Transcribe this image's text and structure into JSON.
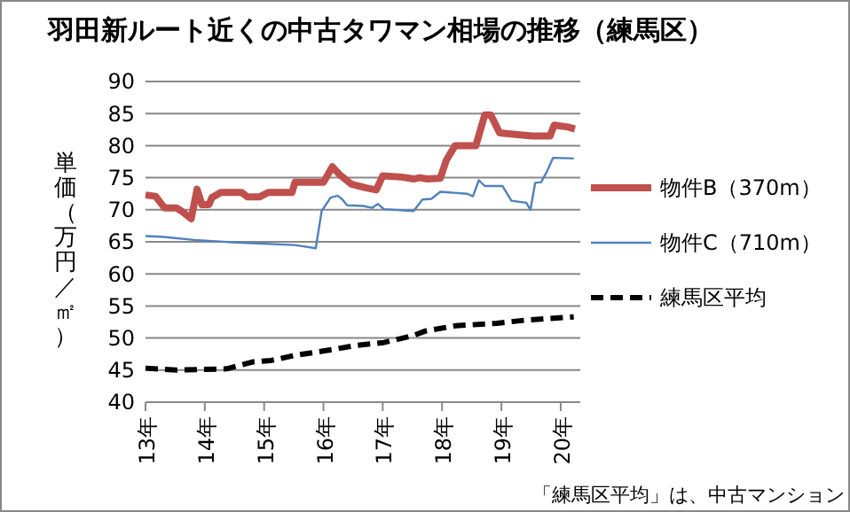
{
  "chart_data": {
    "type": "line",
    "title": "羽田新ルート近くの中古タワマン相場の推移（練馬区）",
    "ylabel": "単価（万円／㎡）",
    "xlim": [
      13,
      20.33
    ],
    "xticks": [
      {
        "value": 13,
        "label": "13年"
      },
      {
        "value": 14,
        "label": "14年"
      },
      {
        "value": 15,
        "label": "15年"
      },
      {
        "value": 16,
        "label": "16年"
      },
      {
        "value": 17,
        "label": "17年"
      },
      {
        "value": 18,
        "label": "18年"
      },
      {
        "value": 19,
        "label": "19年"
      },
      {
        "value": 20,
        "label": "20年"
      }
    ],
    "ylim": [
      40,
      90
    ],
    "yticks": [
      40,
      45,
      50,
      55,
      60,
      65,
      70,
      75,
      80,
      85,
      90
    ],
    "grid": "y",
    "legend": "right",
    "annotations": [
      "「練馬区平均」は、中古マンション"
    ],
    "series": [
      {
        "name": "物件B（370m）",
        "color": "#c0504d",
        "line_style": "solid",
        "x": [
          13.0,
          13.17,
          13.32,
          13.52,
          13.62,
          13.77,
          13.87,
          13.95,
          14.07,
          14.12,
          14.27,
          14.62,
          14.72,
          14.92,
          15.07,
          15.47,
          15.52,
          16.0,
          16.15,
          16.27,
          16.47,
          16.72,
          16.89,
          17.0,
          17.32,
          17.52,
          17.62,
          17.75,
          17.97,
          18.07,
          18.22,
          18.57,
          18.72,
          18.82,
          18.97,
          19.27,
          19.52,
          19.82,
          19.89,
          20.12,
          20.24
        ],
        "values": [
          72.3,
          72.1,
          70.3,
          70.3,
          69.7,
          68.6,
          73.2,
          70.8,
          70.8,
          71.9,
          72.7,
          72.7,
          72.0,
          72.0,
          72.7,
          72.7,
          74.3,
          74.3,
          76.7,
          75.5,
          74.0,
          73.4,
          73.1,
          75.3,
          75.1,
          74.8,
          75.0,
          74.8,
          74.9,
          77.7,
          80.0,
          80.0,
          84.8,
          84.8,
          82.0,
          81.7,
          81.5,
          81.5,
          83.2,
          82.9,
          82.6
        ]
      },
      {
        "name": "物件C（710m）",
        "color": "#4f81bd",
        "line_style": "solid",
        "x": [
          13.0,
          13.27,
          13.82,
          14.52,
          15.52,
          15.87,
          15.97,
          16.12,
          16.24,
          16.32,
          16.4,
          16.67,
          16.82,
          16.92,
          17.02,
          17.52,
          17.67,
          17.82,
          17.97,
          18.42,
          18.52,
          18.62,
          18.72,
          19.02,
          19.17,
          19.42,
          19.49,
          19.57,
          19.67,
          19.77,
          19.87,
          20.22
        ],
        "values": [
          65.9,
          65.8,
          65.3,
          64.9,
          64.5,
          64.0,
          69.8,
          71.9,
          72.2,
          71.6,
          70.7,
          70.6,
          70.3,
          70.9,
          70.1,
          69.8,
          71.6,
          71.7,
          72.8,
          72.5,
          72.1,
          74.6,
          73.7,
          73.7,
          71.4,
          71.1,
          70.0,
          74.2,
          74.3,
          76.0,
          78.1,
          78.0
        ]
      },
      {
        "name": "練馬区平均",
        "color": "#000000",
        "line_style": "dashed",
        "x": [
          13.0,
          13.52,
          14.37,
          14.82,
          15.12,
          15.52,
          16.02,
          16.52,
          17.02,
          17.52,
          17.72,
          18.22,
          18.92,
          19.42,
          20.22
        ],
        "values": [
          45.3,
          45.0,
          45.2,
          46.3,
          46.5,
          47.3,
          48.0,
          48.8,
          49.3,
          50.4,
          51.1,
          51.9,
          52.3,
          52.8,
          53.3
        ]
      }
    ]
  }
}
